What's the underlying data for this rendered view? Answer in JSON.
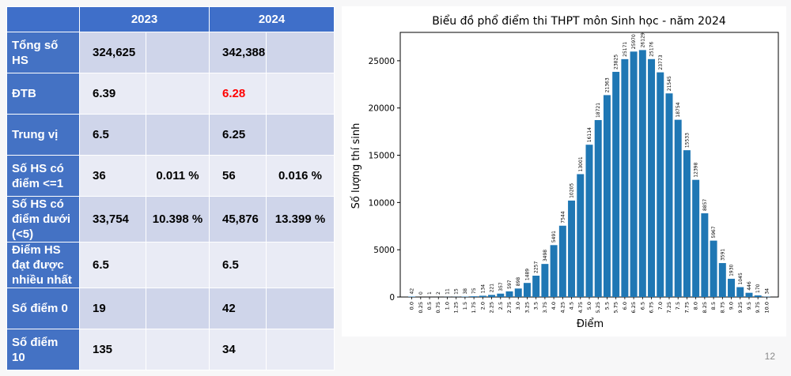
{
  "table": {
    "headers": [
      "2023",
      "2024"
    ],
    "rows": [
      {
        "label": "Tổng số HS",
        "v2023": "324,625",
        "p2023": "",
        "v2024": "342,388",
        "p2024": ""
      },
      {
        "label": "ĐTB",
        "v2023": "6.39",
        "p2023": "",
        "v2024": "6.28",
        "p2024": ""
      },
      {
        "label": "Trung vị",
        "v2023": "6.5",
        "p2023": "",
        "v2024": "6.25",
        "p2024": ""
      },
      {
        "label": "Số HS có điểm <=1",
        "v2023": "36",
        "p2023": "0.011 %",
        "v2024": "56",
        "p2024": "0.016 %"
      },
      {
        "label": "Số HS có điểm dưới (<5)",
        "v2023": "33,754",
        "p2023": "10.398 %",
        "v2024": "45,876",
        "p2024": "13.399 %"
      },
      {
        "label": "Điểm HS đạt được nhiều nhất",
        "v2023": "6.5",
        "p2023": "",
        "v2024": "6.5",
        "p2024": ""
      },
      {
        "label": "Số điểm 0",
        "v2023": "19",
        "p2023": "",
        "v2024": "42",
        "p2024": ""
      },
      {
        "label": "Số điểm 10",
        "v2023": "135",
        "p2023": "",
        "v2024": "34",
        "p2024": ""
      }
    ],
    "highlight_color": "#ff0000",
    "highlight_cell": "ĐTB 2024"
  },
  "chart_data": {
    "type": "bar",
    "title": "Biểu đồ phổ điểm thi THPT môn Sinh học - năm 2024",
    "xlabel": "Điểm",
    "ylabel": "Số lượng thí sinh",
    "categories": [
      "0.0",
      "0.25",
      "0.5",
      "0.75",
      "1.0",
      "1.25",
      "1.5",
      "1.75",
      "2.0",
      "2.25",
      "2.5",
      "2.75",
      "3.0",
      "3.25",
      "3.5",
      "3.75",
      "4.0",
      "4.25",
      "4.5",
      "4.75",
      "5.0",
      "5.25",
      "5.5",
      "5.75",
      "6.0",
      "6.25",
      "6.5",
      "6.75",
      "7.0",
      "7.25",
      "7.5",
      "7.75",
      "8.0",
      "8.25",
      "8.5",
      "8.75",
      "9.0",
      "9.25",
      "9.5",
      "9.75",
      "10.0"
    ],
    "values": [
      42,
      0,
      1,
      2,
      11,
      15,
      38,
      75,
      134,
      221,
      357,
      597,
      898,
      1489,
      2257,
      3498,
      5491,
      7544,
      10205,
      13001,
      16114,
      18721,
      21363,
      23825,
      25171,
      25970,
      26129,
      25176,
      23773,
      21545,
      18754,
      15533,
      12398,
      8857,
      5967,
      3591,
      1930,
      1045,
      446,
      170,
      34
    ],
    "ylim": [
      0,
      28000
    ],
    "yticks": [
      0,
      5000,
      10000,
      15000,
      20000,
      25000
    ],
    "grid": false,
    "bar_color": "#1f77b4"
  },
  "page_number": "12"
}
